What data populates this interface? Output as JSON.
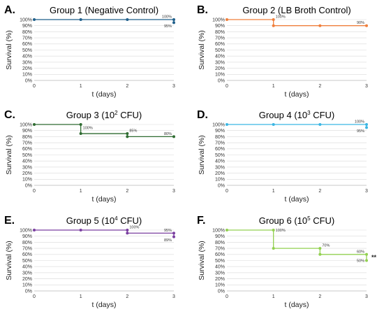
{
  "chart_data": [
    {
      "type": "line",
      "letter": "A.",
      "title": "Group 1 (Negative Control)",
      "title_sup": "",
      "title_end": "",
      "xlabel": "t (days)",
      "ylabel": "Survival (%)",
      "x_ticks": [
        "0",
        "1",
        "2",
        "3"
      ],
      "y_ticks": [
        "0%",
        "10%",
        "20%",
        "30%",
        "40%",
        "50%",
        "60%",
        "70%",
        "80%",
        "90%",
        "100%"
      ],
      "xlim": [
        0,
        3
      ],
      "ylim": [
        0,
        100
      ],
      "color": "#1f5f8b",
      "grid": true,
      "lines": [
        [
          [
            0,
            100
          ],
          [
            3,
            100
          ]
        ],
        [
          [
            3,
            100
          ],
          [
            3,
            95
          ]
        ]
      ],
      "points": [
        [
          0,
          100
        ],
        [
          1,
          100
        ],
        [
          2,
          100
        ],
        [
          3,
          100
        ],
        [
          3,
          95
        ]
      ],
      "labels": [
        {
          "text": "100%",
          "x": 3,
          "y": 100,
          "pos": "above-left"
        },
        {
          "text": "95%",
          "x": 3,
          "y": 95,
          "pos": "below-left"
        }
      ],
      "significance": ""
    },
    {
      "type": "line",
      "letter": "B.",
      "title": "Group 2 (LB Broth Control)",
      "title_sup": "",
      "title_end": "",
      "xlabel": "t (days)",
      "ylabel": "Survival (%)",
      "x_ticks": [
        "0",
        "1",
        "2",
        "3"
      ],
      "y_ticks": [
        "0%",
        "10%",
        "20%",
        "30%",
        "40%",
        "50%",
        "60%",
        "70%",
        "80%",
        "90%",
        "100%"
      ],
      "xlim": [
        0,
        3
      ],
      "ylim": [
        0,
        100
      ],
      "color": "#f07f3c",
      "grid": true,
      "lines": [
        [
          [
            0,
            100
          ],
          [
            1,
            100
          ],
          [
            1,
            90
          ],
          [
            3,
            90
          ]
        ]
      ],
      "points": [
        [
          0,
          100
        ],
        [
          1,
          100
        ],
        [
          1,
          90
        ],
        [
          2,
          90
        ],
        [
          3,
          90
        ]
      ],
      "labels": [
        {
          "text": "100%",
          "x": 1,
          "y": 100,
          "pos": "above-right"
        },
        {
          "text": "90%",
          "x": 3,
          "y": 90,
          "pos": "above-left"
        }
      ],
      "significance": ""
    },
    {
      "type": "line",
      "letter": "C.",
      "title": "Group 3 (10",
      "title_sup": "2",
      "title_end": " CFU)",
      "xlabel": "t (days)",
      "ylabel": "Survival (%)",
      "x_ticks": [
        "0",
        "1",
        "2",
        "3"
      ],
      "y_ticks": [
        "0%",
        "10%",
        "20%",
        "30%",
        "40%",
        "50%",
        "60%",
        "70%",
        "80%",
        "90%",
        "100%"
      ],
      "xlim": [
        0,
        3
      ],
      "ylim": [
        0,
        100
      ],
      "color": "#2e6b30",
      "grid": true,
      "lines": [
        [
          [
            0,
            100
          ],
          [
            1,
            100
          ],
          [
            1,
            85
          ],
          [
            2,
            85
          ],
          [
            2,
            80
          ],
          [
            3,
            80
          ]
        ]
      ],
      "points": [
        [
          0,
          100
        ],
        [
          1,
          100
        ],
        [
          1,
          85
        ],
        [
          2,
          85
        ],
        [
          2,
          80
        ],
        [
          3,
          80
        ]
      ],
      "labels": [
        {
          "text": "100%",
          "x": 1,
          "y": 100,
          "pos": "below-right"
        },
        {
          "text": "85%",
          "x": 2,
          "y": 85,
          "pos": "above-right"
        },
        {
          "text": "80%",
          "x": 3,
          "y": 80,
          "pos": "above-left"
        }
      ],
      "significance": ""
    },
    {
      "type": "line",
      "letter": "D.",
      "title": "Group 4 (10",
      "title_sup": "3",
      "title_end": " CFU)",
      "xlabel": "t (days)",
      "ylabel": "Survival (%)",
      "x_ticks": [
        "0",
        "1",
        "2",
        "3"
      ],
      "y_ticks": [
        "0%",
        "10%",
        "20%",
        "30%",
        "40%",
        "50%",
        "60%",
        "70%",
        "80%",
        "90%",
        "100%"
      ],
      "xlim": [
        0,
        3
      ],
      "ylim": [
        0,
        100
      ],
      "color": "#3bb6e3",
      "grid": true,
      "lines": [
        [
          [
            0,
            100
          ],
          [
            3,
            100
          ]
        ],
        [
          [
            3,
            100
          ],
          [
            3,
            95
          ]
        ]
      ],
      "points": [
        [
          0,
          100
        ],
        [
          1,
          100
        ],
        [
          2,
          100
        ],
        [
          3,
          100
        ],
        [
          3,
          95
        ]
      ],
      "labels": [
        {
          "text": "100%",
          "x": 3,
          "y": 100,
          "pos": "above-left"
        },
        {
          "text": "95%",
          "x": 3,
          "y": 95,
          "pos": "below-left"
        }
      ],
      "significance": ""
    },
    {
      "type": "line",
      "letter": "E.",
      "title": "Group 5 (10",
      "title_sup": "4",
      "title_end": " CFU)",
      "xlabel": "t (days)",
      "ylabel": "Survival (%)",
      "x_ticks": [
        "0",
        "1",
        "2",
        "3"
      ],
      "y_ticks": [
        "0%",
        "10%",
        "20%",
        "30%",
        "40%",
        "50%",
        "60%",
        "70%",
        "80%",
        "90%",
        "100%"
      ],
      "xlim": [
        0,
        3
      ],
      "ylim": [
        0,
        100
      ],
      "color": "#7a3fa0",
      "grid": true,
      "lines": [
        [
          [
            0,
            100
          ],
          [
            2,
            100
          ],
          [
            2,
            95
          ],
          [
            3,
            95
          ],
          [
            3,
            89
          ]
        ]
      ],
      "points": [
        [
          0,
          100
        ],
        [
          1,
          100
        ],
        [
          2,
          100
        ],
        [
          2,
          95
        ],
        [
          3,
          95
        ],
        [
          3,
          89
        ]
      ],
      "labels": [
        {
          "text": "100%",
          "x": 2,
          "y": 100,
          "pos": "above-right"
        },
        {
          "text": "95%",
          "x": 3,
          "y": 95,
          "pos": "above-left"
        },
        {
          "text": "89%",
          "x": 3,
          "y": 89,
          "pos": "below-left"
        }
      ],
      "significance": ""
    },
    {
      "type": "line",
      "letter": "F.",
      "title": "Group 6 (10",
      "title_sup": "5",
      "title_end": " CFU)",
      "xlabel": "t (days)",
      "ylabel": "Survival (%)",
      "x_ticks": [
        "0",
        "1",
        "2",
        "3"
      ],
      "y_ticks": [
        "0%",
        "10%",
        "20%",
        "30%",
        "40%",
        "50%",
        "60%",
        "70%",
        "80%",
        "90%",
        "100%"
      ],
      "xlim": [
        0,
        3
      ],
      "ylim": [
        0,
        100
      ],
      "color": "#92d050",
      "grid": true,
      "lines": [
        [
          [
            0,
            100
          ],
          [
            1,
            100
          ],
          [
            1,
            70
          ],
          [
            2,
            70
          ],
          [
            2,
            60
          ],
          [
            3,
            60
          ],
          [
            3,
            50
          ]
        ]
      ],
      "points": [
        [
          0,
          100
        ],
        [
          1,
          100
        ],
        [
          1,
          70
        ],
        [
          2,
          70
        ],
        [
          2,
          60
        ],
        [
          3,
          60
        ],
        [
          3,
          50
        ]
      ],
      "labels": [
        {
          "text": "100%",
          "x": 1,
          "y": 100,
          "pos": "right"
        },
        {
          "text": "70%",
          "x": 2,
          "y": 70,
          "pos": "above-right"
        },
        {
          "text": "60%",
          "x": 3,
          "y": 60,
          "pos": "above-left"
        },
        {
          "text": "50%",
          "x": 3,
          "y": 50,
          "pos": "left"
        }
      ],
      "significance": "**"
    }
  ]
}
